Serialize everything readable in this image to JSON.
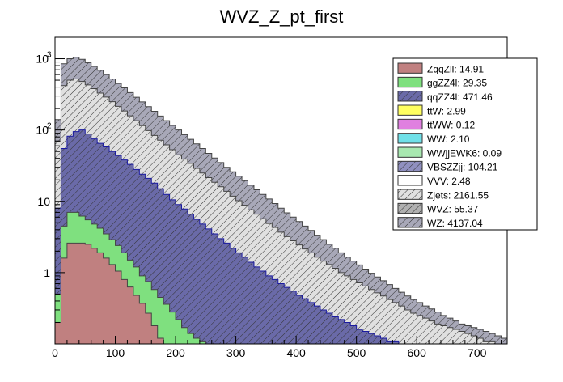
{
  "chart_data": {
    "type": "histogram",
    "stacked": true,
    "title": "WVZ_Z_pt_first",
    "xlabel": "",
    "ylabel": "",
    "xlim": [
      0,
      750
    ],
    "ylim": [
      0.1,
      2000
    ],
    "yscale": "log",
    "x_ticks": [
      "0",
      "100",
      "200",
      "300",
      "400",
      "500",
      "600",
      "700"
    ],
    "y_ticks": [
      {
        "value": 1,
        "label": "1"
      },
      {
        "value": 10,
        "label": "10"
      },
      {
        "value": 100,
        "label": "10",
        "exp": "2"
      },
      {
        "value": 1000,
        "label": "10",
        "exp": "3"
      }
    ],
    "bin_width": 10,
    "legend_position": "top-right",
    "series": [
      {
        "name": "ZqqZll",
        "label": "ZqqZll: 14.91",
        "color": "#c08080",
        "hatch": false,
        "cumulative": [
          0.2,
          1.6,
          2.6,
          2.6,
          2.6,
          2.5,
          2.2,
          1.9,
          1.6,
          1.3,
          1.05,
          0.8,
          0.63,
          0.48,
          0.37,
          0.27,
          0.18,
          0.12
        ]
      },
      {
        "name": "ggZZ4l",
        "label": "ggZZ4l: 29.35",
        "color": "#7fe07f",
        "hatch": false,
        "cumulative": [
          0.5,
          4.5,
          7.0,
          7.0,
          6.2,
          5.5,
          4.8,
          4.2,
          3.5,
          2.9,
          2.4,
          1.9,
          1.5,
          1.2,
          0.9,
          0.75,
          0.58,
          0.45,
          0.36,
          0.28,
          0.22,
          0.17,
          0.14,
          0.12,
          0.11
        ]
      },
      {
        "name": "qqZZ4l",
        "label": "qqZZ4l: 471.46",
        "color": "#6a6aa8",
        "hatch": true,
        "cumulative": [
          8,
          55,
          82,
          95,
          100,
          88,
          75,
          65,
          58,
          50,
          44,
          38,
          33,
          28,
          24,
          21,
          18,
          15,
          12.5,
          10.5,
          9,
          7.8,
          6.6,
          5.6,
          4.8,
          4.1,
          3.5,
          3.0,
          2.6,
          2.2,
          1.9,
          1.65,
          1.4,
          1.2,
          1.05,
          0.9,
          0.8,
          0.7,
          0.62,
          0.55,
          0.48,
          0.43,
          0.38,
          0.34,
          0.3,
          0.27,
          0.24,
          0.22,
          0.2,
          0.18,
          0.16,
          0.15,
          0.14,
          0.13,
          0.12,
          0.11,
          0.11,
          0.1
        ]
      },
      {
        "name": "ttW",
        "label": "ttW: 2.99",
        "color": "#ffff60",
        "hatch": false,
        "cumulative": []
      },
      {
        "name": "ttWW",
        "label": "ttWW: 0.12",
        "color": "#e080e0",
        "hatch": false,
        "cumulative": []
      },
      {
        "name": "WW",
        "label": "WW: 2.10",
        "color": "#70e0e8",
        "hatch": false,
        "cumulative": []
      },
      {
        "name": "WWjjEWK6",
        "label": "WWjjEWK6: 0.09",
        "color": "#a8e8b0",
        "hatch": false,
        "cumulative": []
      },
      {
        "name": "VBSZZjj",
        "label": "VBSZZjj: 104.21",
        "color": "#9090c0",
        "hatch": true,
        "cumulative": []
      },
      {
        "name": "VVV",
        "label": "VVV: 2.48",
        "color": "#ffffff",
        "hatch": false,
        "cumulative": []
      },
      {
        "name": "Zjets",
        "label": "Zjets: 2161.55",
        "color": "#e0e0e0",
        "hatch": true,
        "cumulative": [
          70,
          420,
          500,
          520,
          480,
          430,
          380,
          330,
          290,
          250,
          215,
          185,
          158,
          135,
          115,
          98,
          84,
          72,
          62,
          53,
          45,
          39,
          34,
          29,
          25,
          21.5,
          18.5,
          16,
          13.8,
          11.8,
          10.2,
          8.8,
          7.6,
          6.6,
          5.7,
          4.9,
          4.3,
          3.7,
          3.2,
          2.8,
          2.45,
          2.15,
          1.9,
          1.65,
          1.45,
          1.3,
          1.15,
          1.0,
          0.9,
          0.8,
          0.72,
          0.65,
          0.58,
          0.52,
          0.47,
          0.42,
          0.38,
          0.34,
          0.3,
          0.27,
          0.25,
          0.23,
          0.21,
          0.19,
          0.18,
          0.17,
          0.16,
          0.15,
          0.14,
          0.13,
          0.12,
          0.11,
          0.11,
          0.1,
          0.1
        ]
      },
      {
        "name": "WVZ",
        "label": "WVZ: 55.37",
        "color": "#b0b0b0",
        "hatch": true,
        "cumulative": []
      },
      {
        "name": "WZ",
        "label": "WZ: 4137.04",
        "color": "#a8a8b8",
        "hatch": true,
        "cumulative": [
          140,
          850,
          1000,
          1050,
          980,
          880,
          780,
          690,
          600,
          520,
          450,
          390,
          335,
          288,
          248,
          213,
          183,
          157,
          135,
          116,
          100,
          86,
          74,
          64,
          55,
          47,
          40.5,
          35,
          30,
          26,
          22.5,
          19.5,
          16.8,
          14.5,
          12.5,
          10.8,
          9.3,
          8.0,
          6.9,
          6.0,
          5.2,
          4.5,
          3.9,
          3.35,
          2.9,
          2.5,
          2.2,
          1.9,
          1.65,
          1.45,
          1.28,
          1.12,
          0.98,
          0.87,
          0.77,
          0.68,
          0.6,
          0.53,
          0.47,
          0.42,
          0.38,
          0.34,
          0.31,
          0.28,
          0.25,
          0.23,
          0.21,
          0.19,
          0.18,
          0.17,
          0.16,
          0.15,
          0.14,
          0.13,
          0.12
        ]
      }
    ]
  }
}
